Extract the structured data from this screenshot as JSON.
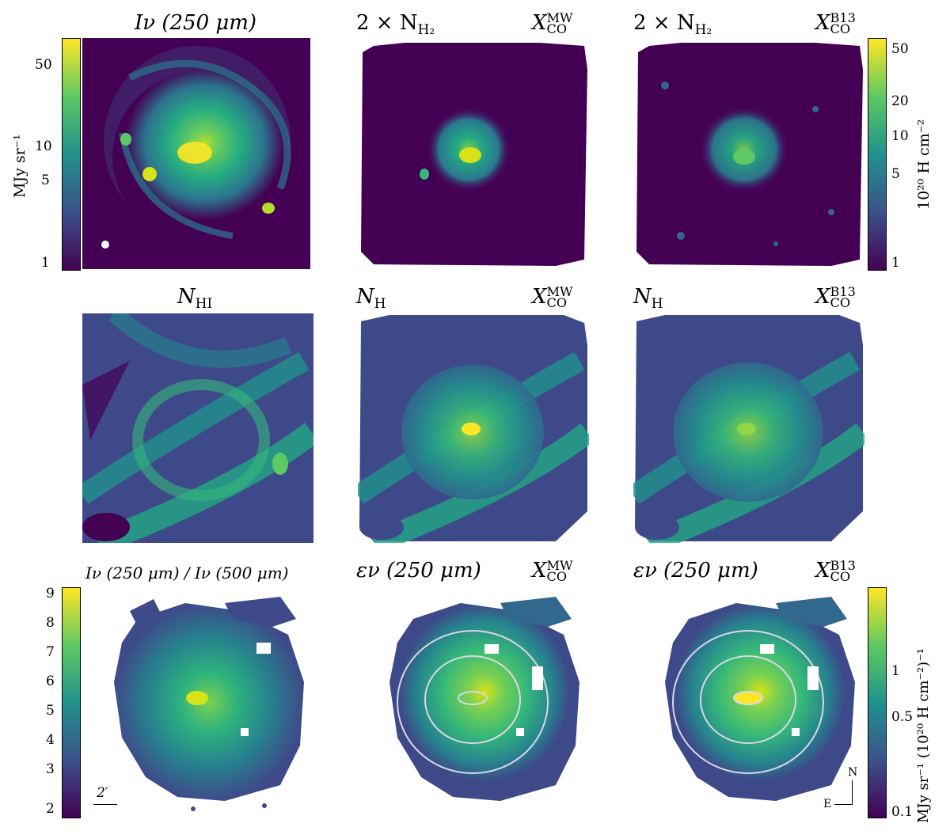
{
  "row1": {
    "panel1_title": "Iν (250 μm)",
    "panel2_left": "2 × N",
    "panel2_left_sub": "H₂",
    "panel2_right": "X",
    "panel2_right_sup": "MW",
    "panel2_right_sub": "CO",
    "panel3_left": "2 × N",
    "panel3_left_sub": "H₂",
    "panel3_right": "X",
    "panel3_right_sup": "B13",
    "panel3_right_sub": "CO",
    "left_colorbar_label": "MJy sr⁻¹",
    "left_colorbar_ticks": [
      "50",
      "10",
      "5",
      "1"
    ],
    "right_colorbar_label": "10²⁰ H cm⁻²",
    "right_colorbar_ticks": [
      "50",
      "20",
      "10",
      "5",
      "1"
    ]
  },
  "row2": {
    "panel1_title": "N",
    "panel1_sub": "HI",
    "panel2_left": "N",
    "panel2_left_sub": "H",
    "panel2_right": "X",
    "panel2_right_sup": "MW",
    "panel2_right_sub": "CO",
    "panel3_left": "N",
    "panel3_left_sub": "H",
    "panel3_right": "X",
    "panel3_right_sup": "B13",
    "panel3_right_sub": "CO"
  },
  "row3": {
    "panel1_title": "Iν (250 μm) / Iν (500 μm)",
    "panel2_left": "εν (250 μm)",
    "panel2_right": "X",
    "panel2_right_sup": "MW",
    "panel2_right_sub": "CO",
    "panel3_left": "εν (250 μm)",
    "panel3_right": "X",
    "panel3_right_sup": "B13",
    "panel3_right_sub": "CO",
    "left_colorbar_ticks": [
      "9",
      "8",
      "7",
      "6",
      "5",
      "4",
      "3",
      "2"
    ],
    "right_colorbar_label": "MJy sr⁻¹ (10²⁰ H cm⁻²)⁻¹",
    "right_colorbar_ticks": [
      "1",
      "0.5",
      "0.1"
    ],
    "scalebar_label": "2′",
    "compass_n": "N",
    "compass_e": "E"
  },
  "colors": {
    "viridis_dark": "#440154",
    "viridis_mid": "#21918c",
    "viridis_bright": "#fde725",
    "contour": "#d8d8e6"
  }
}
